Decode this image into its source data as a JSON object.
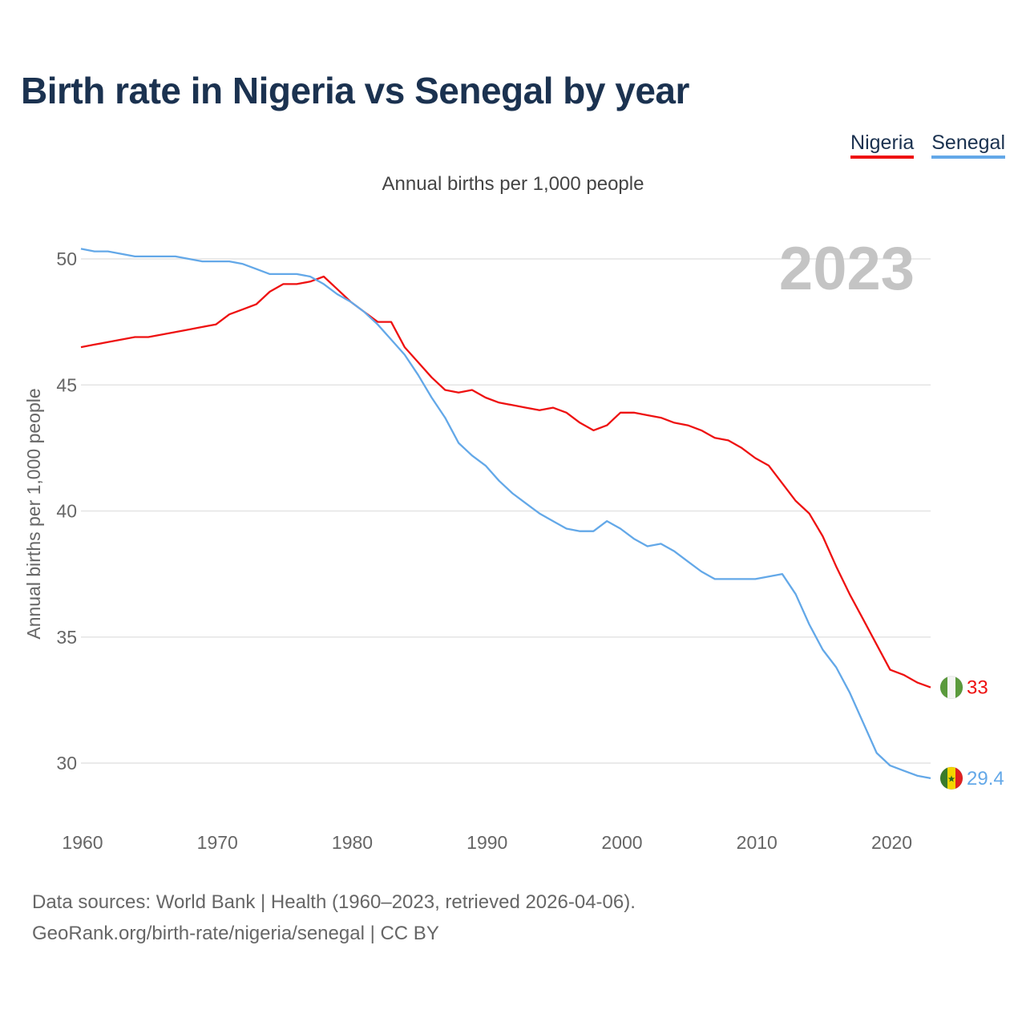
{
  "page": {
    "title": "Birth rate in Nigeria vs Senegal by year",
    "subtitle": "Annual births per 1,000 people",
    "footer_line1": "Data sources: World Bank | Health (1960–2023, retrieved 2026-04-06).",
    "footer_line2": "GeoRank.org/birth-rate/nigeria/senegal | CC BY"
  },
  "legend": [
    {
      "name": "Nigeria",
      "color": "#ee1111"
    },
    {
      "name": "Senegal",
      "color": "#63a8e8"
    }
  ],
  "chart_data": {
    "type": "line",
    "title": "Birth rate in Nigeria vs Senegal by year",
    "subtitle": "Annual births per 1,000 people",
    "xlabel": "",
    "ylabel": "Annual births per 1,000 people",
    "xlim": [
      1960,
      2023
    ],
    "ylim": [
      28,
      52
    ],
    "x_ticks": [
      1960,
      1970,
      1980,
      1990,
      2000,
      2010,
      2020
    ],
    "y_ticks": [
      30,
      35,
      40,
      45,
      50
    ],
    "grid": true,
    "year_label": "2023",
    "legend_position": "top-right",
    "x": [
      1960,
      1961,
      1962,
      1963,
      1964,
      1965,
      1966,
      1967,
      1968,
      1969,
      1970,
      1971,
      1972,
      1973,
      1974,
      1975,
      1976,
      1977,
      1978,
      1979,
      1980,
      1981,
      1982,
      1983,
      1984,
      1985,
      1986,
      1987,
      1988,
      1989,
      1990,
      1991,
      1992,
      1993,
      1994,
      1995,
      1996,
      1997,
      1998,
      1999,
      2000,
      2001,
      2002,
      2003,
      2004,
      2005,
      2006,
      2007,
      2008,
      2009,
      2010,
      2011,
      2012,
      2013,
      2014,
      2015,
      2016,
      2017,
      2018,
      2019,
      2020,
      2021,
      2022,
      2023
    ],
    "series": [
      {
        "name": "Nigeria",
        "color": "#ee1111",
        "end_label": "33",
        "values": [
          46.5,
          46.6,
          46.7,
          46.8,
          46.9,
          46.9,
          47.0,
          47.1,
          47.2,
          47.3,
          47.4,
          47.8,
          48.0,
          48.2,
          48.7,
          49.0,
          49.0,
          49.1,
          49.3,
          48.8,
          48.3,
          47.9,
          47.5,
          47.5,
          46.5,
          45.9,
          45.3,
          44.8,
          44.7,
          44.8,
          44.5,
          44.3,
          44.2,
          44.1,
          44.0,
          44.1,
          43.9,
          43.5,
          43.2,
          43.4,
          43.9,
          43.9,
          43.8,
          43.7,
          43.5,
          43.4,
          43.2,
          42.9,
          42.8,
          42.5,
          42.1,
          41.8,
          41.1,
          40.4,
          39.9,
          39.0,
          37.8,
          36.7,
          35.7,
          34.7,
          33.7,
          33.5,
          33.2,
          33.0
        ]
      },
      {
        "name": "Senegal",
        "color": "#63a8e8",
        "end_label": "29.4",
        "values": [
          50.4,
          50.3,
          50.3,
          50.2,
          50.1,
          50.1,
          50.1,
          50.1,
          50.0,
          49.9,
          49.9,
          49.9,
          49.8,
          49.6,
          49.4,
          49.4,
          49.4,
          49.3,
          49.0,
          48.6,
          48.3,
          47.9,
          47.4,
          46.8,
          46.2,
          45.4,
          44.5,
          43.7,
          42.7,
          42.2,
          41.8,
          41.2,
          40.7,
          40.3,
          39.9,
          39.6,
          39.3,
          39.2,
          39.2,
          39.6,
          39.3,
          38.9,
          38.6,
          38.7,
          38.4,
          38.0,
          37.6,
          37.3,
          37.3,
          37.3,
          37.3,
          37.4,
          37.5,
          36.7,
          35.5,
          34.5,
          33.8,
          32.8,
          31.6,
          30.4,
          29.9,
          29.7,
          29.5,
          29.4
        ]
      }
    ]
  }
}
